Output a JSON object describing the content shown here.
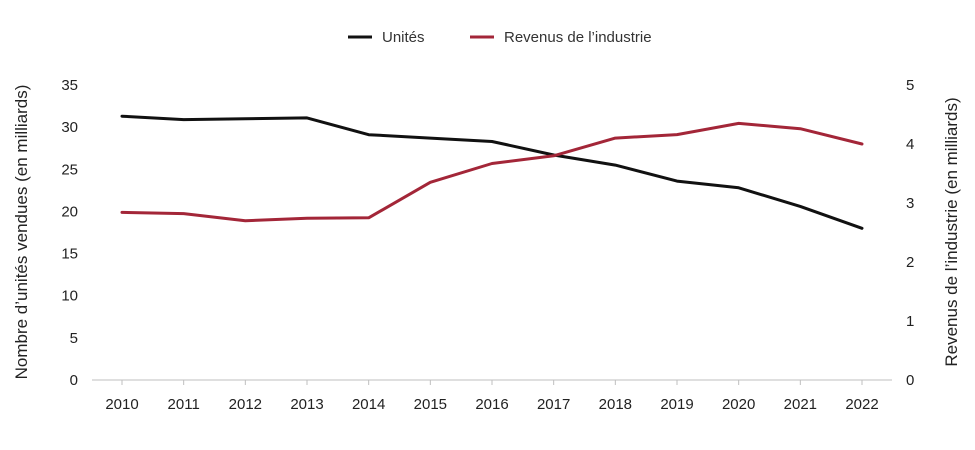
{
  "chart_data": {
    "type": "line",
    "title": "",
    "categories": [
      "2010",
      "2011",
      "2012",
      "2013",
      "2014",
      "2015",
      "2016",
      "2017",
      "2018",
      "2019",
      "2020",
      "2021",
      "2022"
    ],
    "series": [
      {
        "name": "Unités",
        "axis": "left",
        "color": "#111111",
        "values": [
          31.3,
          30.9,
          31.0,
          31.1,
          29.1,
          28.7,
          28.3,
          26.7,
          25.5,
          23.6,
          22.8,
          20.6,
          18.0
        ]
      },
      {
        "name": "Revenus de l’industrie",
        "axis": "right",
        "color": "#a32638",
        "values": [
          2.84,
          2.82,
          2.7,
          2.74,
          2.75,
          3.35,
          3.67,
          3.8,
          4.1,
          4.16,
          4.35,
          4.26,
          4.0
        ]
      }
    ],
    "ylabel_left": "Nombre d’unités vendues (en milliards)",
    "ylabel_right": "Revenus de l’industrie (en milliards)",
    "ylim_left": [
      0,
      35
    ],
    "yticks_left": [
      0,
      5,
      10,
      15,
      20,
      25,
      30,
      35
    ],
    "ylim_right": [
      0,
      5
    ],
    "yticks_right": [
      0,
      1,
      2,
      3,
      4,
      5
    ],
    "grid": false,
    "legend_position": "top-center"
  }
}
